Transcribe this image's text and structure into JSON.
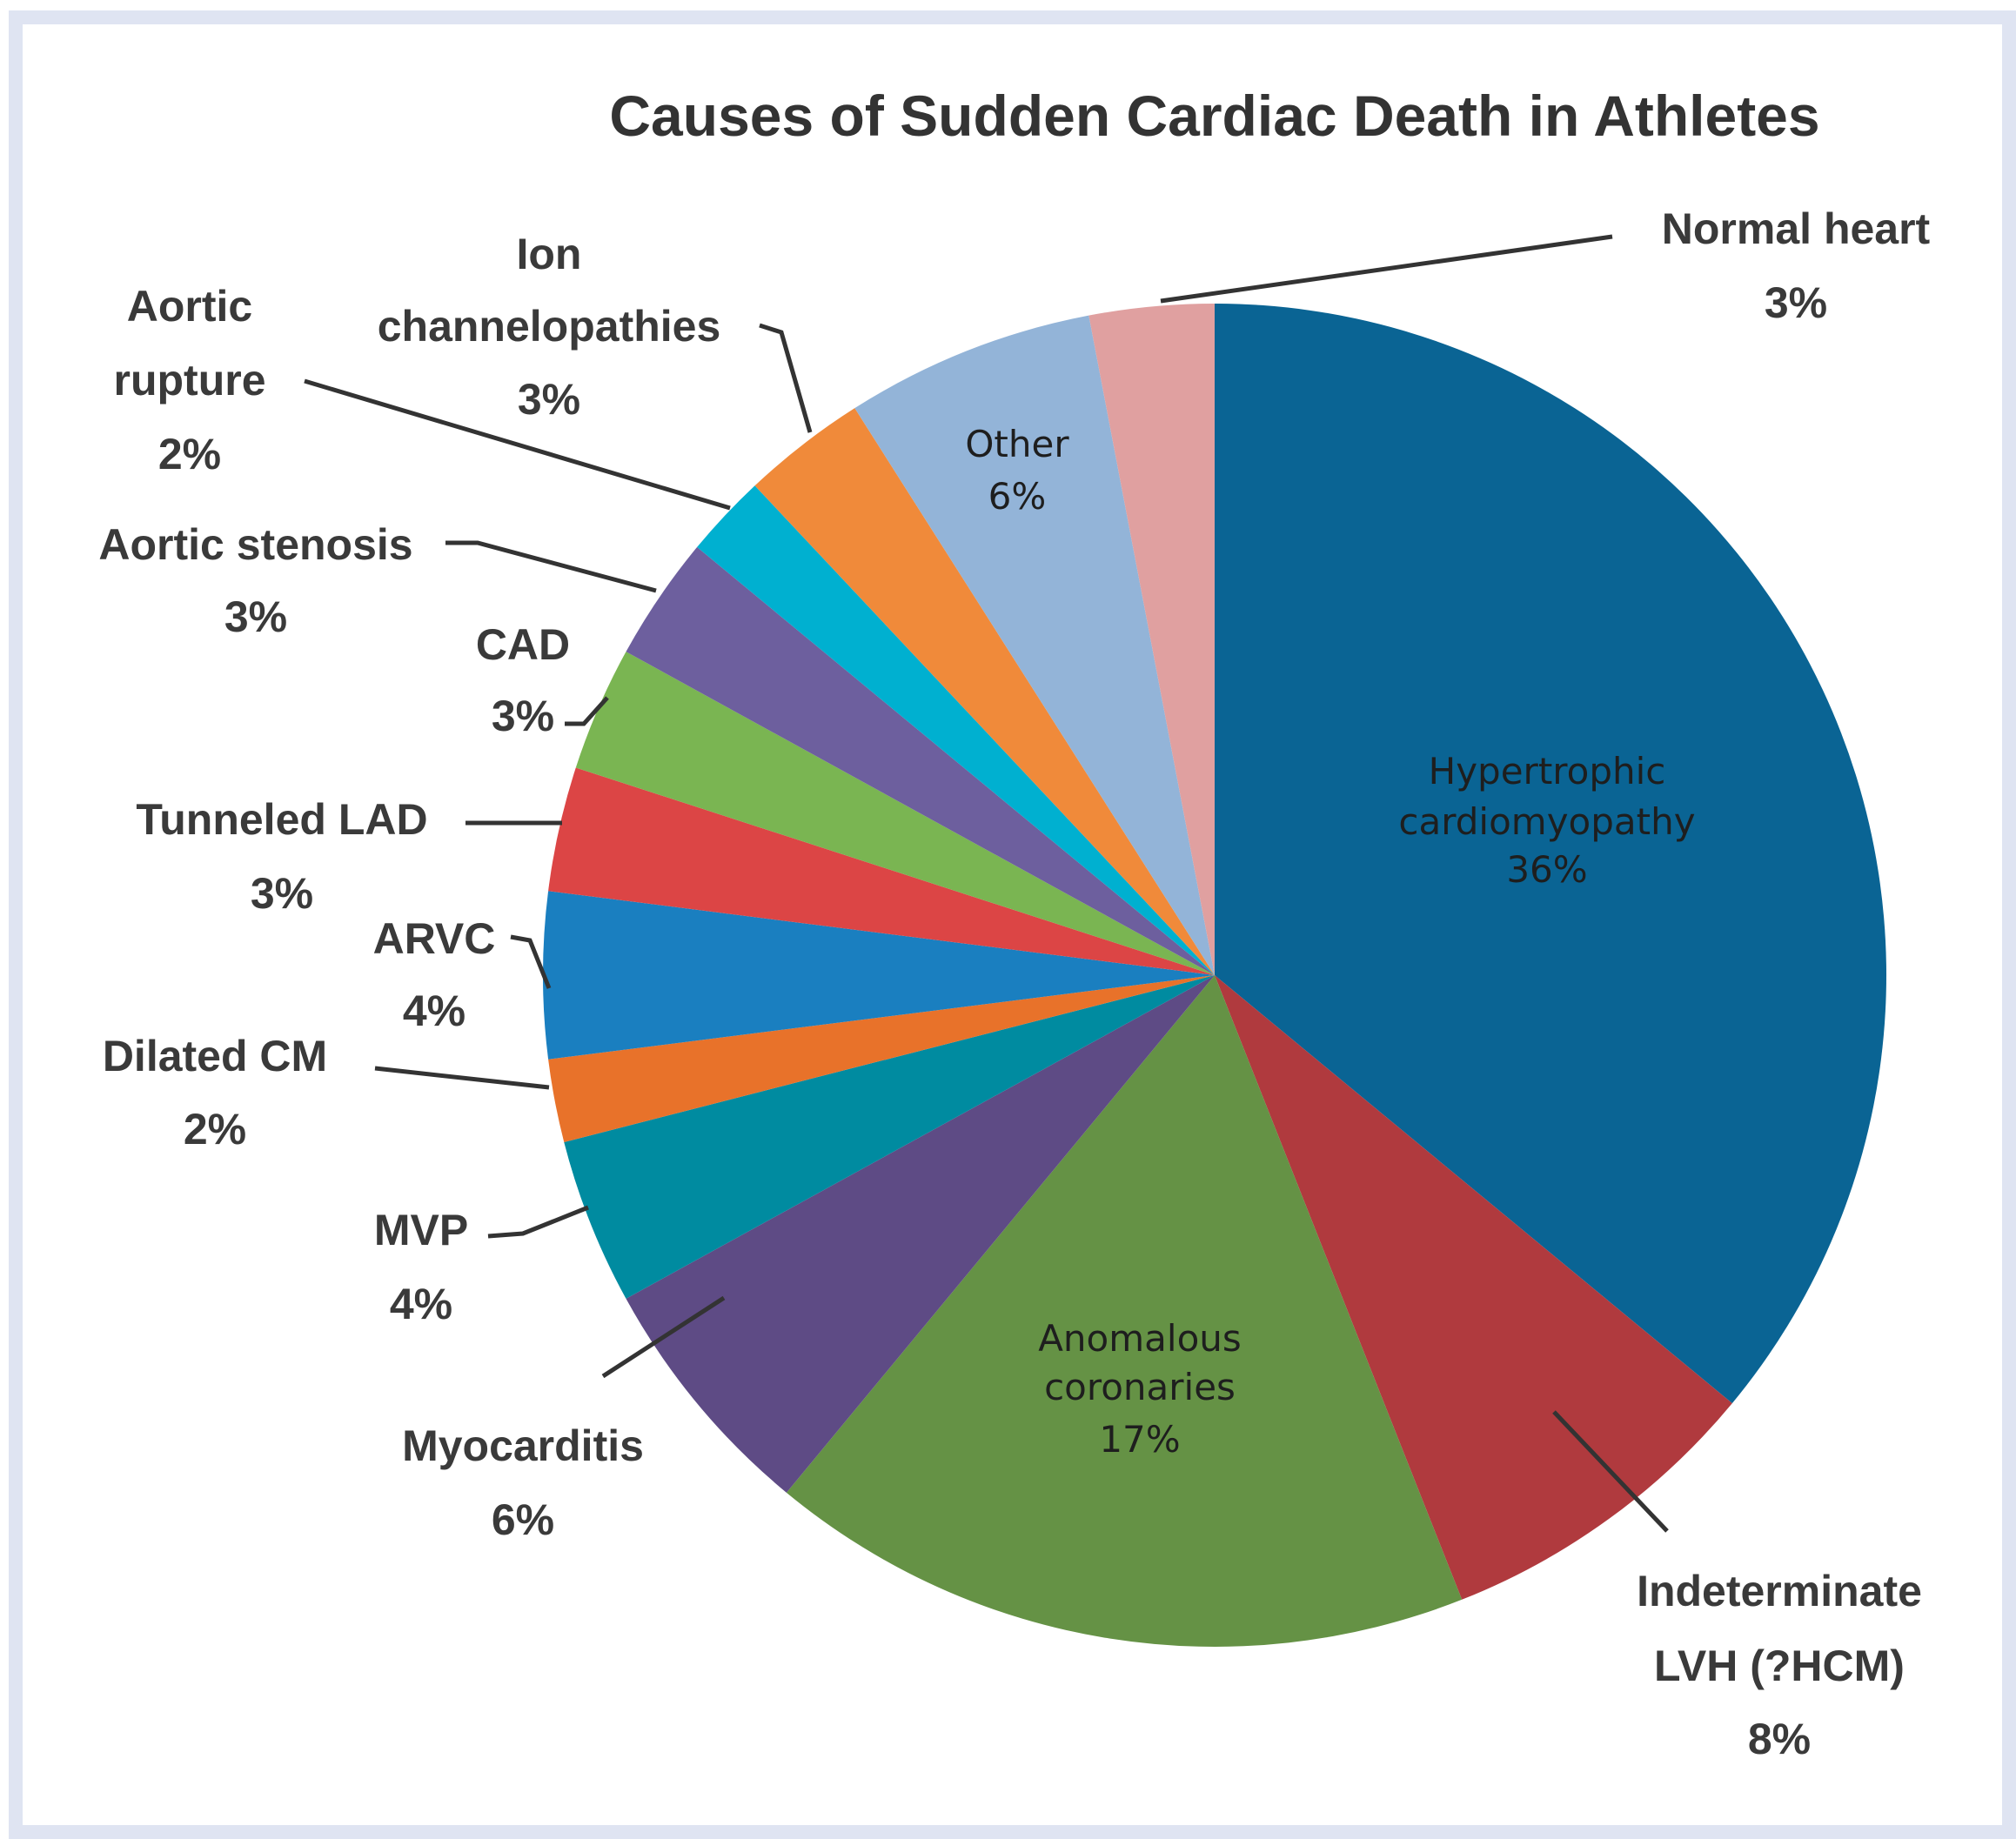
{
  "chart_data": {
    "type": "pie",
    "title": "Causes of Sudden Cardiac Death in Athletes",
    "start": "12 o'clock, clockwise",
    "slices": [
      {
        "label": "Hypertrophic cardiomyopathy",
        "lines": [
          "Hypertrophic",
          "cardiomyopathy",
          "36%"
        ],
        "value": 36,
        "color": "#0a6494"
      },
      {
        "label": "Indeterminate LVH (?HCM)",
        "lines": [
          "Indeterminate",
          "LVH (?HCM)",
          "8%"
        ],
        "value": 8,
        "color": "#b03a3e"
      },
      {
        "label": "Anomalous coronaries",
        "lines": [
          "Anomalous",
          "coronaries",
          "17%"
        ],
        "value": 17,
        "color": "#659245"
      },
      {
        "label": "Myocarditis",
        "lines": [
          "Myocarditis",
          "6%"
        ],
        "value": 6,
        "color": "#5e4b85"
      },
      {
        "label": "MVP",
        "lines": [
          "MVP",
          "4%"
        ],
        "value": 4,
        "color": "#008ba0"
      },
      {
        "label": "Dilated CM",
        "lines": [
          "Dilated CM",
          "2%"
        ],
        "value": 2,
        "color": "#e8722a"
      },
      {
        "label": "ARVC",
        "lines": [
          "ARVC",
          "4%"
        ],
        "value": 4,
        "color": "#1a7fc0"
      },
      {
        "label": "Tunneled LAD",
        "lines": [
          "Tunneled LAD",
          "3%"
        ],
        "value": 3,
        "color": "#dc4545"
      },
      {
        "label": "CAD",
        "lines": [
          "CAD",
          "3%"
        ],
        "value": 3,
        "color": "#7ab552"
      },
      {
        "label": "Aortic stenosis",
        "lines": [
          "Aortic stenosis",
          "3%"
        ],
        "value": 3,
        "color": "#6d5f9e"
      },
      {
        "label": "Aortic rupture",
        "lines": [
          "Aortic",
          "rupture",
          "2%"
        ],
        "value": 2,
        "color": "#00b0d0"
      },
      {
        "label": "Ion channelopathies",
        "lines": [
          "Ion",
          "channelopathies",
          "3%"
        ],
        "value": 3,
        "color": "#f08a3a"
      },
      {
        "label": "Other",
        "lines": [
          "Other",
          "6%"
        ],
        "value": 6,
        "color": "#93b4d8"
      },
      {
        "label": "Normal heart",
        "lines": [
          "Normal heart",
          "3%"
        ],
        "value": 3,
        "color": "#e0a0a0"
      }
    ]
  }
}
